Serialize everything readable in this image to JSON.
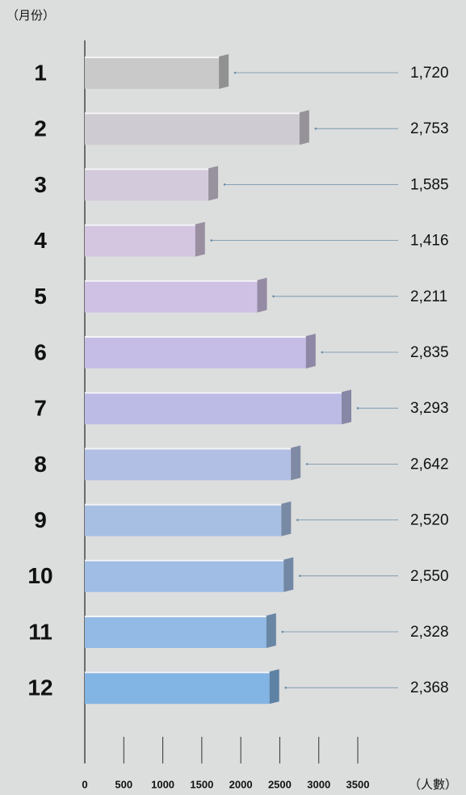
{
  "chart_data": {
    "type": "bar",
    "orientation": "horizontal",
    "y_label": "（月份）",
    "x_label": "（人數）",
    "categories": [
      "1",
      "2",
      "3",
      "4",
      "5",
      "6",
      "7",
      "8",
      "9",
      "10",
      "11",
      "12"
    ],
    "values": [
      1720,
      2753,
      1585,
      1416,
      2211,
      2835,
      3293,
      2642,
      2520,
      2550,
      2328,
      2368
    ],
    "value_labels": [
      "1,720",
      "2,753",
      "1,585",
      "1,416",
      "2,211",
      "2,835",
      "3,293",
      "2,642",
      "2,520",
      "2,550",
      "2,328",
      "2,368"
    ],
    "colors": [
      "#c9c9c9",
      "#cfcbd3",
      "#d3cadb",
      "#d4c6e0",
      "#cfc1e4",
      "#c5bde6",
      "#bbbbe6",
      "#b2bfe4",
      "#a8bfe4",
      "#9fbde5",
      "#92bae5",
      "#82b5e3"
    ],
    "xlim": [
      0,
      3500
    ],
    "xticks": [
      0,
      500,
      1000,
      1500,
      2000,
      2500,
      3000,
      3500
    ]
  }
}
